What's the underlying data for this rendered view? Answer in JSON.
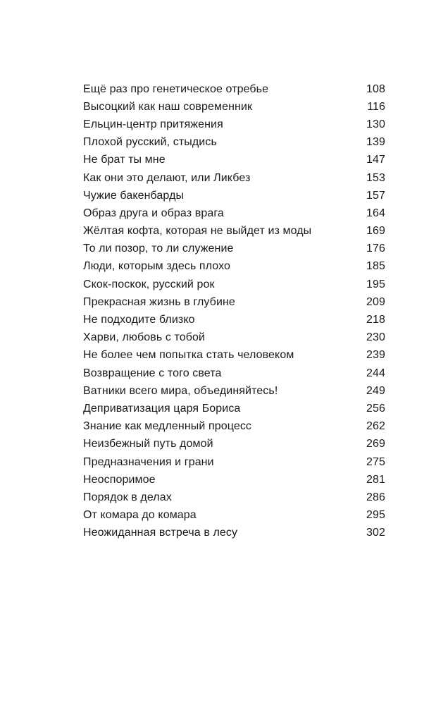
{
  "toc": {
    "entries": [
      {
        "title": "Ещё раз про генетическое отребье",
        "page": "108"
      },
      {
        "title": "Высоцкий как наш современник",
        "page": "116"
      },
      {
        "title": "Ельцин-центр притяжения",
        "page": "130"
      },
      {
        "title": "Плохой русский, стыдись",
        "page": "139"
      },
      {
        "title": "Не брат ты мне",
        "page": "147"
      },
      {
        "title": "Как они это делают, или Ликбез",
        "page": "153"
      },
      {
        "title": "Чужие бакенбарды",
        "page": "157"
      },
      {
        "title": "Образ друга и образ врага",
        "page": "164"
      },
      {
        "title": "Жёлтая кофта, которая не выйдет из моды",
        "page": "169"
      },
      {
        "title": "То ли позор, то ли служение",
        "page": "176"
      },
      {
        "title": "Люди, которым здесь плохо",
        "page": "185"
      },
      {
        "title": "Скок-поскок, русский рок",
        "page": "195"
      },
      {
        "title": "Прекрасная жизнь в глубине",
        "page": "209"
      },
      {
        "title": "Не подходите близко",
        "page": "218"
      },
      {
        "title": "Харви, любовь с тобой",
        "page": "230"
      },
      {
        "title": "Не более чем попытка стать человеком",
        "page": "239"
      },
      {
        "title": "Возвращение с того света",
        "page": "244"
      },
      {
        "title": "Ватники всего мира, объединяйтесь!",
        "page": "249"
      },
      {
        "title": "Деприватизация царя Бориса",
        "page": "256"
      },
      {
        "title": "Знание как медленный процесс",
        "page": "262"
      },
      {
        "title": "Неизбежный путь домой",
        "page": "269"
      },
      {
        "title": "Предназначения и грани",
        "page": "275"
      },
      {
        "title": "Неоспоримое",
        "page": "281"
      },
      {
        "title": "Порядок в делах",
        "page": "286"
      },
      {
        "title": "От комара до комара",
        "page": "295"
      },
      {
        "title": "Неожиданная встреча в лесу",
        "page": "302"
      }
    ]
  }
}
